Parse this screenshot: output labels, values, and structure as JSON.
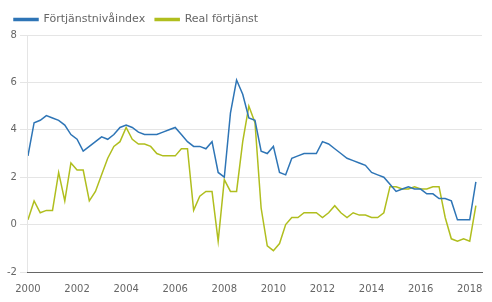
{
  "chart_data": {
    "type": "line",
    "x": [
      2000.0,
      2000.25,
      2000.5,
      2000.75,
      2001.0,
      2001.25,
      2001.5,
      2001.75,
      2002.0,
      2002.25,
      2002.5,
      2002.75,
      2003.0,
      2003.25,
      2003.5,
      2003.75,
      2004.0,
      2004.25,
      2004.5,
      2004.75,
      2005.0,
      2005.25,
      2005.5,
      2005.75,
      2006.0,
      2006.25,
      2006.5,
      2006.75,
      2007.0,
      2007.25,
      2007.5,
      2007.75,
      2008.0,
      2008.25,
      2008.5,
      2008.75,
      2009.0,
      2009.25,
      2009.5,
      2009.75,
      2010.0,
      2010.25,
      2010.5,
      2010.75,
      2011.0,
      2011.25,
      2011.5,
      2011.75,
      2012.0,
      2012.25,
      2012.5,
      2012.75,
      2013.0,
      2013.25,
      2013.5,
      2013.75,
      2014.0,
      2014.25,
      2014.5,
      2014.75,
      2015.0,
      2015.25,
      2015.5,
      2015.75,
      2016.0,
      2016.25,
      2016.5,
      2016.75,
      2017.0,
      2017.25,
      2017.5,
      2017.75,
      2018.0,
      2018.25
    ],
    "series": [
      {
        "name": "Förtjänstnivåindex",
        "color": "#2e75b6",
        "values": [
          2.9,
          4.3,
          4.4,
          4.6,
          4.5,
          4.4,
          4.2,
          3.8,
          3.6,
          3.1,
          3.3,
          3.5,
          3.7,
          3.6,
          3.8,
          4.1,
          4.2,
          4.1,
          3.9,
          3.8,
          3.8,
          3.8,
          3.9,
          4.0,
          4.1,
          3.8,
          3.5,
          3.3,
          3.3,
          3.2,
          3.5,
          2.2,
          2.0,
          4.7,
          6.1,
          5.5,
          4.5,
          4.4,
          3.1,
          3.0,
          3.3,
          2.2,
          2.1,
          2.8,
          2.9,
          3.0,
          3.0,
          3.0,
          3.5,
          3.4,
          3.2,
          3.0,
          2.8,
          2.7,
          2.6,
          2.5,
          2.2,
          2.1,
          2.0,
          1.7,
          1.4,
          1.5,
          1.6,
          1.5,
          1.5,
          1.3,
          1.3,
          1.1,
          1.1,
          1.0,
          0.2,
          0.2,
          0.2,
          1.8
        ]
      },
      {
        "name": "Real förtjänst",
        "color": "#b0be1e",
        "values": [
          0.2,
          1.0,
          0.5,
          0.6,
          0.6,
          2.2,
          1.0,
          2.6,
          2.3,
          2.3,
          1.0,
          1.4,
          2.1,
          2.8,
          3.3,
          3.5,
          4.1,
          3.6,
          3.4,
          3.4,
          3.3,
          3.0,
          2.9,
          2.9,
          2.9,
          3.2,
          3.2,
          0.6,
          1.2,
          1.4,
          1.4,
          -0.7,
          1.9,
          1.4,
          1.4,
          3.5,
          5.0,
          4.3,
          0.7,
          -0.9,
          -1.1,
          -0.8,
          0.0,
          0.3,
          0.3,
          0.5,
          0.5,
          0.5,
          0.3,
          0.5,
          0.8,
          0.5,
          0.3,
          0.5,
          0.4,
          0.4,
          0.3,
          0.3,
          0.5,
          1.6,
          1.6,
          1.5,
          1.5,
          1.6,
          1.5,
          1.5,
          1.6,
          1.6,
          0.3,
          -0.6,
          -0.7,
          -0.6,
          -0.7,
          0.8
        ]
      }
    ],
    "xlim": [
      2000.0,
      2018.5
    ],
    "xticks": [
      2000,
      2002,
      2004,
      2006,
      2008,
      2010,
      2012,
      2014,
      2016,
      2018
    ],
    "ylim": [
      -2,
      8
    ],
    "yticks": [
      -2,
      0,
      2,
      4,
      6,
      8
    ],
    "grid": "y",
    "legend": "upper left"
  }
}
